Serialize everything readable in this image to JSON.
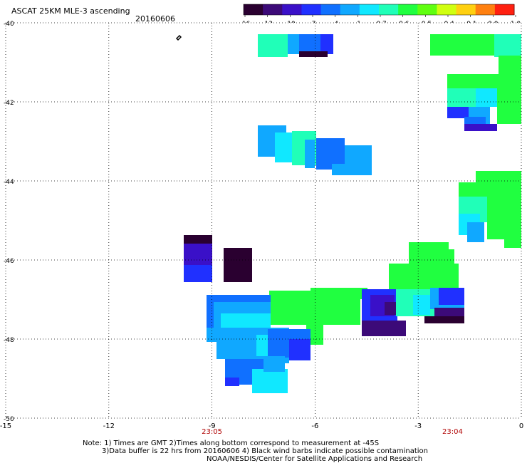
{
  "header": {
    "title": "ASCAT 25KM MLE-3 ascending",
    "date": "20160606"
  },
  "colorbar": {
    "labels": [
      "-16",
      "-13",
      "-10",
      "-7",
      "-4",
      "-1",
      "-0.7",
      "-0.6",
      "-0.5",
      "-0.4",
      "-0.1",
      "0.0",
      "1.0"
    ],
    "colors": [
      "#2a0030",
      "#3c0a78",
      "#3a10c8",
      "#2030ff",
      "#1070ff",
      "#10a8ff",
      "#10e8ff",
      "#20ffb8",
      "#20ff40",
      "#60ff10",
      "#d0ff10",
      "#ffd010",
      "#ff8010",
      "#ff2010"
    ]
  },
  "axes": {
    "x_ticks": [
      "-15",
      "-12",
      "-9",
      "-6",
      "-3",
      "0"
    ],
    "y_ticks": [
      "-40",
      "-42",
      "-44",
      "-46",
      "-48",
      "-50"
    ],
    "time_labels": [
      {
        "lon": -9,
        "text": "23:05"
      },
      {
        "lon": -2,
        "text": "23:04"
      }
    ],
    "xlim": [
      -15,
      0
    ],
    "ylim": [
      -50,
      -40
    ]
  },
  "footer": {
    "line1": "Note: 1) Times are GMT 2)Times along bottom correspond to measurement at -45S",
    "line2": "3)Data buffer is 22 hrs from 20160606 4) Black wind barbs indicate possible contamination",
    "line3": "NOAA/NESDIS/Center for Satellite Applications and Research"
  }
}
